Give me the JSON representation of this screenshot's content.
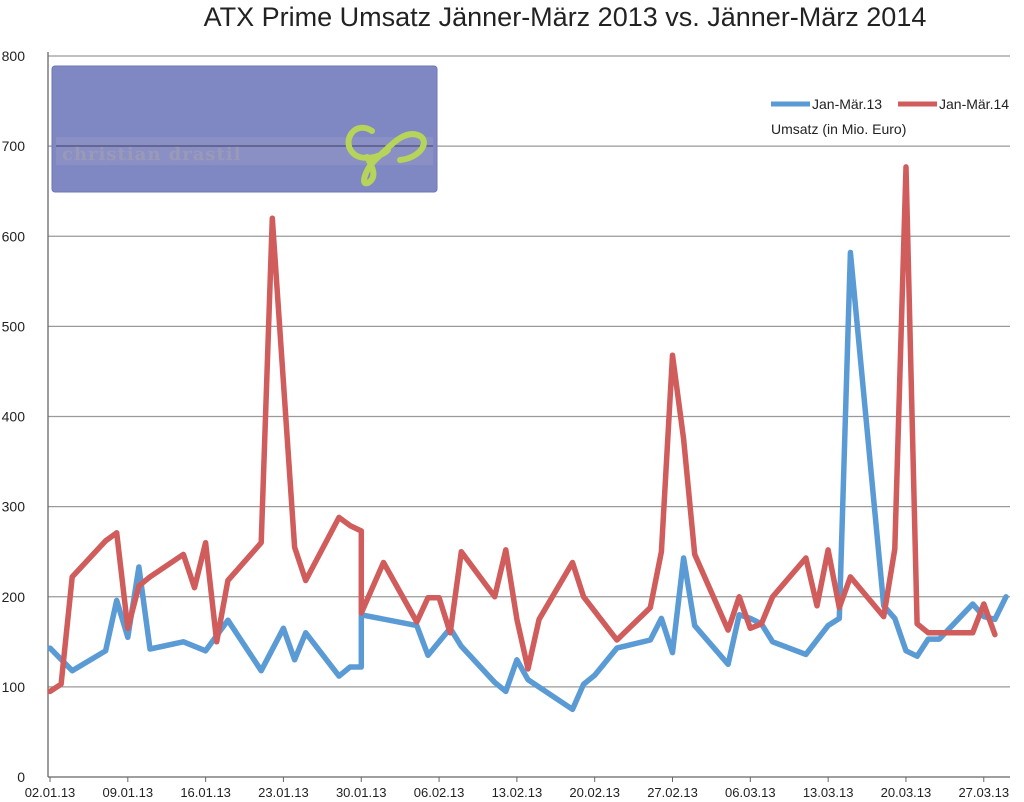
{
  "chart_data": {
    "type": "line",
    "title": "ATX Prime Umsatz Jänner-März 2013 vs. Jänner-März 2014",
    "ylabel": "Umsatz (in Mio. Euro)",
    "ylim": [
      0,
      800
    ],
    "yticks": [
      0,
      100,
      200,
      300,
      400,
      500,
      600,
      700,
      800
    ],
    "grid": true,
    "legend_position": "top-right",
    "x_tick_labels": [
      "02.01.13",
      "09.01.13",
      "16.01.13",
      "23.01.13",
      "30.01.13",
      "06.02.13",
      "13.02.13",
      "20.02.13",
      "27.02.13",
      "06.03.13",
      "13.03.13",
      "20.03.13",
      "27.03.13"
    ],
    "series": [
      {
        "name": "Jan-Mär.13",
        "color": "#5b9bd5",
        "points": [
          [
            0,
            143
          ],
          [
            2,
            118
          ],
          [
            5,
            140
          ],
          [
            6,
            196
          ],
          [
            7,
            155
          ],
          [
            8,
            233
          ],
          [
            9,
            142
          ],
          [
            12,
            150
          ],
          [
            14,
            140
          ],
          [
            16,
            174
          ],
          [
            19,
            118
          ],
          [
            21,
            165
          ],
          [
            22,
            130
          ],
          [
            23,
            160
          ],
          [
            26,
            112
          ],
          [
            27,
            122
          ],
          [
            28,
            122
          ],
          [
            28,
            180
          ],
          [
            33,
            168
          ],
          [
            34,
            135
          ],
          [
            36,
            165
          ],
          [
            37,
            145
          ],
          [
            40,
            105
          ],
          [
            41,
            95
          ],
          [
            42,
            130
          ],
          [
            43,
            108
          ],
          [
            47,
            75
          ],
          [
            48,
            103
          ],
          [
            49,
            113
          ],
          [
            51,
            143
          ],
          [
            54,
            152
          ],
          [
            55,
            176
          ],
          [
            56,
            138
          ],
          [
            57,
            243
          ],
          [
            58,
            168
          ],
          [
            61,
            125
          ],
          [
            62,
            180
          ],
          [
            63,
            176
          ],
          [
            64,
            170
          ],
          [
            65,
            150
          ],
          [
            68,
            136
          ],
          [
            70,
            168
          ],
          [
            71,
            176
          ],
          [
            72,
            582
          ],
          [
            75,
            190
          ],
          [
            76,
            176
          ],
          [
            77,
            140
          ],
          [
            78,
            134
          ],
          [
            79,
            153
          ],
          [
            80,
            153
          ],
          [
            83,
            192
          ],
          [
            84,
            178
          ],
          [
            85,
            175
          ],
          [
            86,
            200
          ]
        ]
      },
      {
        "name": "Jan-Mär.14",
        "color": "#d05c5c",
        "points": [
          [
            0,
            95
          ],
          [
            1,
            103
          ],
          [
            2,
            222
          ],
          [
            5,
            262
          ],
          [
            6,
            271
          ],
          [
            7,
            165
          ],
          [
            8,
            212
          ],
          [
            9,
            222
          ],
          [
            12,
            247
          ],
          [
            13,
            210
          ],
          [
            14,
            260
          ],
          [
            15,
            150
          ],
          [
            16,
            218
          ],
          [
            19,
            260
          ],
          [
            20,
            620
          ],
          [
            22,
            255
          ],
          [
            23,
            218
          ],
          [
            26,
            288
          ],
          [
            27,
            279
          ],
          [
            28,
            273
          ],
          [
            28,
            182
          ],
          [
            30,
            238
          ],
          [
            33,
            172
          ],
          [
            34,
            199
          ],
          [
            35,
            199
          ],
          [
            36,
            160
          ],
          [
            37,
            250
          ],
          [
            40,
            200
          ],
          [
            41,
            252
          ],
          [
            42,
            175
          ],
          [
            43,
            120
          ],
          [
            44,
            175
          ],
          [
            47,
            238
          ],
          [
            48,
            200
          ],
          [
            51,
            152
          ],
          [
            54,
            188
          ],
          [
            55,
            250
          ],
          [
            56,
            468
          ],
          [
            57,
            375
          ],
          [
            58,
            247
          ],
          [
            61,
            163
          ],
          [
            62,
            200
          ],
          [
            63,
            165
          ],
          [
            64,
            170
          ],
          [
            65,
            200
          ],
          [
            68,
            243
          ],
          [
            69,
            190
          ],
          [
            70,
            252
          ],
          [
            71,
            188
          ],
          [
            72,
            222
          ],
          [
            75,
            178
          ],
          [
            76,
            253
          ],
          [
            77,
            677
          ],
          [
            78,
            170
          ],
          [
            79,
            160
          ],
          [
            83,
            160
          ],
          [
            84,
            192
          ],
          [
            85,
            158
          ]
        ]
      }
    ]
  }
}
